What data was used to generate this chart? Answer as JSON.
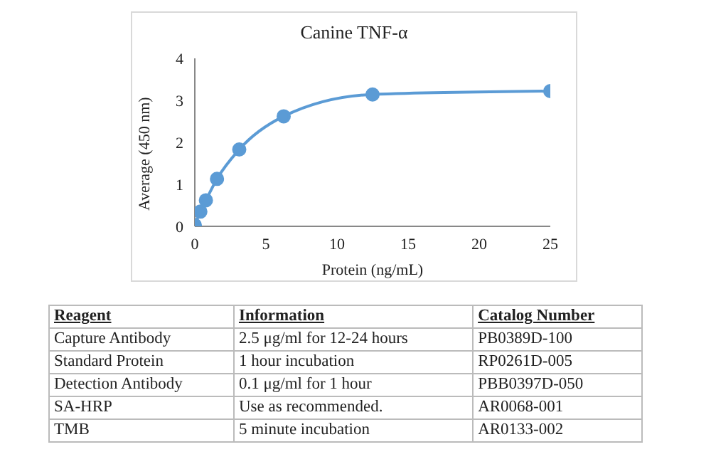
{
  "chart_data": {
    "type": "line",
    "title": "Canine TNF-α",
    "xlabel": "Protein (ng/mL)",
    "ylabel": "Average (450 nm)",
    "x": [
      0,
      0.39,
      0.78,
      1.56,
      3.125,
      6.25,
      12.5,
      25
    ],
    "series": [
      {
        "color": "#5b9bd5",
        "values": [
          0.03,
          0.35,
          0.62,
          1.13,
          1.83,
          2.62,
          3.14,
          3.22
        ]
      }
    ],
    "xlim": [
      0,
      25
    ],
    "xticks": [
      0,
      5,
      10,
      15,
      20,
      25
    ],
    "ylim": [
      0,
      4
    ],
    "yticks": [
      0,
      1,
      2,
      3,
      4
    ],
    "grid": false,
    "legend": false,
    "marker": "circle",
    "line_style": "solid",
    "annotations": [
      "Reagent",
      "Information",
      "Catalog Number",
      "Capture Antibody",
      "2.5 μg/ml for 12-24 hours",
      "PB0389D-100",
      "Standard Protein",
      "1 hour incubation",
      "RP0261D-005",
      "Detection Antibody",
      "0.1 μg/ml for 1 hour",
      "PBB0397D-050",
      "SA-HRP",
      "Use as recommended.",
      "AR0068-001",
      "TMB",
      "5 minute incubation",
      "AR0133-002"
    ]
  }
}
